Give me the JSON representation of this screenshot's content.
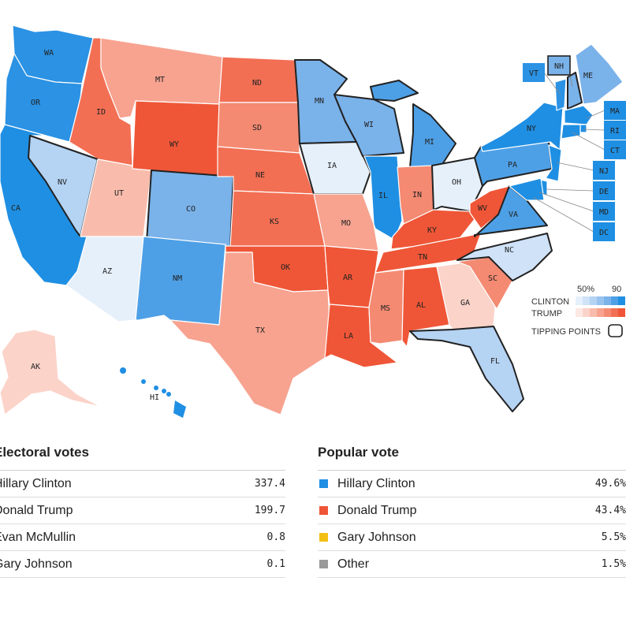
{
  "legend": {
    "clinton_label": "CLINTON",
    "trump_label": "TRUMP",
    "scale_low": "50%",
    "scale_high": "90",
    "tipping_label": "TIPPING POINTS",
    "clinton_ramp": [
      "#e6f0fb",
      "#cfe2f7",
      "#b5d3f3",
      "#98c3ef",
      "#7ab2ea",
      "#4ea0e6",
      "#1f8fe3"
    ],
    "trump_ramp": [
      "#fde8e3",
      "#fbd3c9",
      "#f9bcac",
      "#f7a390",
      "#f48a72",
      "#f26f54",
      "#ef5637"
    ]
  },
  "colors": {
    "clinton": "#1f8fe3",
    "trump": "#ef5637",
    "johnson": "#f2c014",
    "mcmullin": "#8c8c8c",
    "other": "#9a9a9a"
  },
  "map": {
    "states": [
      "WA",
      "OR",
      "CA",
      "ID",
      "NV",
      "MT",
      "WY",
      "UT",
      "AZ",
      "CO",
      "NM",
      "ND",
      "SD",
      "NE",
      "KS",
      "OK",
      "TX",
      "MN",
      "IA",
      "MO",
      "AR",
      "LA",
      "WI",
      "IL",
      "MI",
      "IN",
      "OH",
      "KY",
      "TN",
      "MS",
      "AL",
      "GA",
      "FL",
      "SC",
      "NC",
      "VA",
      "WV",
      "PA",
      "NY",
      "ME",
      "VT",
      "NH",
      "MA",
      "RI",
      "CT",
      "NJ",
      "DE",
      "MD",
      "DC",
      "AK",
      "HI"
    ],
    "tipping_points": [
      "NV",
      "CO",
      "MN",
      "IA",
      "WI",
      "MI",
      "OH",
      "PA",
      "VA",
      "FL",
      "NH",
      "NC"
    ]
  },
  "electoral_votes": {
    "title": "Electoral votes",
    "rows": [
      {
        "name": "Hillary Clinton",
        "value": "337.4"
      },
      {
        "name": "Donald Trump",
        "value": "199.7"
      },
      {
        "name": "Evan McMullin",
        "value": "0.8"
      },
      {
        "name": "Gary Johnson",
        "value": "0.1"
      }
    ]
  },
  "popular_vote": {
    "title": "Popular vote",
    "rows": [
      {
        "name": "Hillary Clinton",
        "value": "49.6%",
        "color": "#1f8fe3"
      },
      {
        "name": "Donald Trump",
        "value": "43.4%",
        "color": "#ef5637"
      },
      {
        "name": "Gary Johnson",
        "value": "5.5%",
        "color": "#f2c014"
      },
      {
        "name": "Other",
        "value": "1.5%",
        "color": "#9a9a9a"
      }
    ]
  }
}
